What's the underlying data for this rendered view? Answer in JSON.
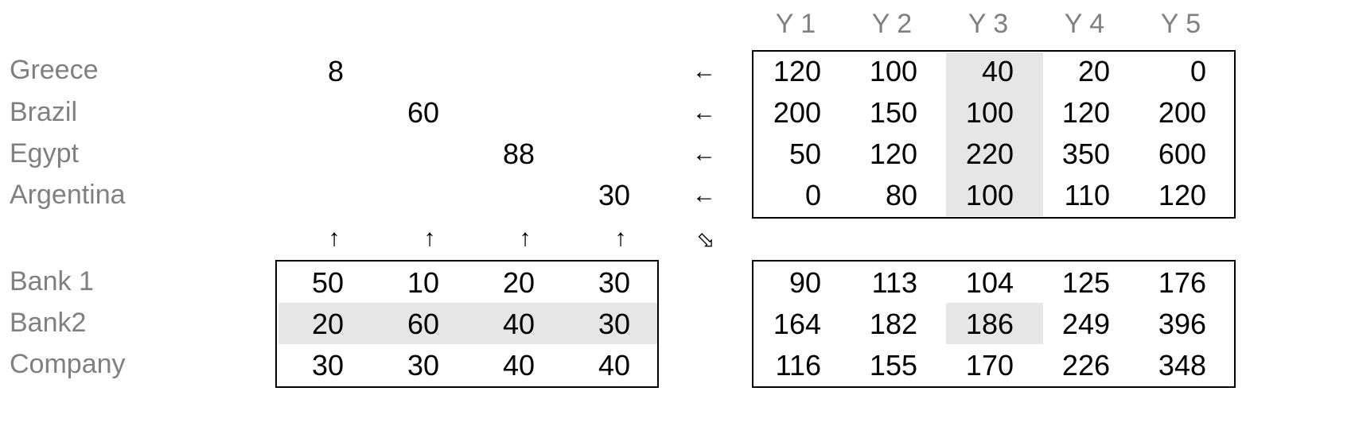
{
  "colors": {
    "label_gray": "#808080",
    "shade": "#e6e6e6",
    "text": "#000000",
    "border": "#000000"
  },
  "year_headers": [
    "Y 1",
    "Y 2",
    "Y 3",
    "Y 4",
    "Y 5"
  ],
  "countries": [
    {
      "name": "Greece",
      "value": "8"
    },
    {
      "name": "Brazil",
      "value": "60"
    },
    {
      "name": "Egypt",
      "value": "88"
    },
    {
      "name": "Argentina",
      "value": "30"
    }
  ],
  "arrows": {
    "left": "←",
    "up": "↑",
    "diag": "⬂"
  },
  "country_matrix": [
    [
      "120",
      "100",
      "40",
      "20",
      "0"
    ],
    [
      "200",
      "150",
      "100",
      "120",
      "200"
    ],
    [
      "50",
      "120",
      "220",
      "350",
      "600"
    ],
    [
      "0",
      "80",
      "100",
      "110",
      "120"
    ]
  ],
  "holders": [
    {
      "name": "Bank 1",
      "weights": [
        "50",
        "10",
        "20",
        "30"
      ]
    },
    {
      "name": "Bank2",
      "weights": [
        "20",
        "60",
        "40",
        "30"
      ]
    },
    {
      "name": "Company",
      "weights": [
        "30",
        "30",
        "40",
        "40"
      ]
    }
  ],
  "result_matrix": [
    [
      "90",
      "113",
      "104",
      "125",
      "176"
    ],
    [
      "164",
      "182",
      "186",
      "249",
      "396"
    ],
    [
      "116",
      "155",
      "170",
      "226",
      "348"
    ]
  ]
}
